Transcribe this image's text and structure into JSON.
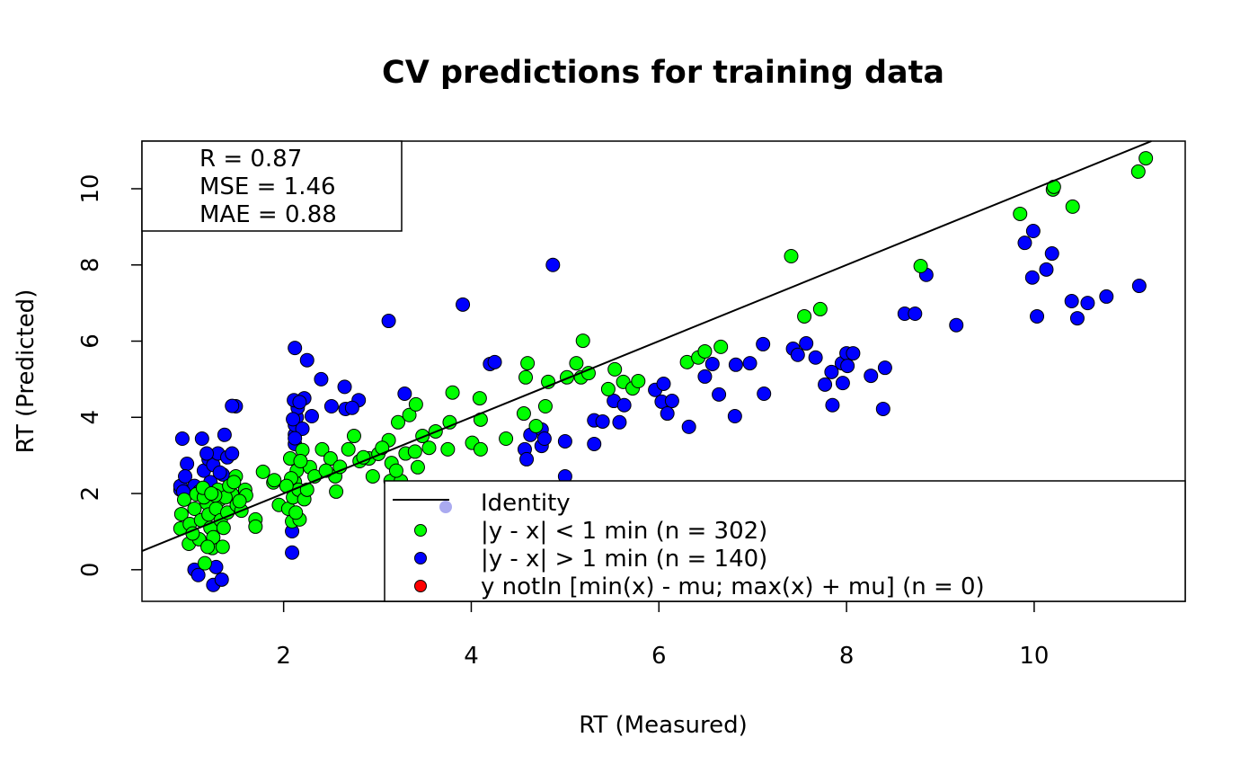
{
  "chart_data": {
    "type": "scatter",
    "title": "CV predictions for training data",
    "xlabel": "RT (Measured)",
    "ylabel": "RT (Predicted)",
    "xlim": [
      0.49,
      11.61
    ],
    "ylim": [
      -0.83,
      11.25
    ],
    "xticks": [
      2,
      4,
      6,
      8,
      10
    ],
    "yticks": [
      0,
      2,
      4,
      6,
      8,
      10
    ],
    "grid": false,
    "stats": [
      "R = 0.87",
      "MSE = 1.46",
      "MAE = 0.88"
    ],
    "identity_line": {
      "slope": 1,
      "intercept": 0,
      "color": "#000000"
    },
    "legend": {
      "placement": "bottom-right",
      "entries": [
        {
          "label": "Identity",
          "marker": "line",
          "color": "#000000"
        },
        {
          "label": "|y - x| < 1 min (n = 302)",
          "marker": "point",
          "color": "#00ff00"
        },
        {
          "label": "|y - x| > 1 min (n = 140)",
          "marker": "point",
          "color": "#0000ff"
        },
        {
          "label": "y notIn [min(x) - mu; max(x) + mu] (n = 0)",
          "marker": "point",
          "color": "#ff0000"
        }
      ],
      "extra_marker_color": "#aaaaf0"
    },
    "series": [
      {
        "color": "#0000ff",
        "points": [
          [
            0.92,
            3.44
          ],
          [
            1.13,
            3.44
          ],
          [
            0.97,
            2.78
          ],
          [
            1.37,
            3.54
          ],
          [
            1.49,
            4.29
          ],
          [
            1.45,
            4.3
          ],
          [
            1.05,
            0.0
          ],
          [
            1.09,
            -0.14
          ],
          [
            1.25,
            -0.4
          ],
          [
            1.34,
            -0.26
          ],
          [
            1.28,
            0.07
          ],
          [
            0.9,
            2.1
          ],
          [
            0.9,
            2.2
          ],
          [
            0.95,
            2.45
          ],
          [
            1.15,
            2.6
          ],
          [
            1.2,
            2.9
          ],
          [
            1.25,
            2.75
          ],
          [
            1.3,
            3.05
          ],
          [
            1.35,
            2.5
          ],
          [
            1.4,
            2.95
          ],
          [
            1.22,
            2.3
          ],
          [
            1.32,
            2.55
          ],
          [
            1.45,
            3.05
          ],
          [
            1.18,
            3.05
          ],
          [
            1.05,
            2.2
          ],
          [
            1.1,
            2.05
          ],
          [
            0.93,
            2.05
          ],
          [
            2.09,
            1.01
          ],
          [
            2.09,
            0.45
          ],
          [
            2.12,
            3.3
          ],
          [
            2.12,
            3.55
          ],
          [
            2.12,
            3.8
          ],
          [
            2.14,
            4.0
          ],
          [
            2.15,
            4.25
          ],
          [
            2.11,
            4.45
          ],
          [
            2.2,
            3.7
          ],
          [
            2.22,
            4.5
          ],
          [
            2.17,
            4.4
          ],
          [
            2.12,
            5.82
          ],
          [
            2.12,
            3.45
          ],
          [
            2.1,
            3.95
          ],
          [
            2.25,
            5.5
          ],
          [
            2.4,
            5.0
          ],
          [
            2.65,
            4.8
          ],
          [
            2.8,
            4.45
          ],
          [
            2.51,
            4.29
          ],
          [
            2.66,
            4.22
          ],
          [
            2.73,
            4.25
          ],
          [
            2.3,
            4.03
          ],
          [
            3.12,
            6.53
          ],
          [
            3.91,
            6.96
          ],
          [
            4.2,
            5.4
          ],
          [
            4.25,
            5.45
          ],
          [
            4.87,
            8.0
          ],
          [
            3.29,
            4.62
          ],
          [
            4.57,
            3.16
          ],
          [
            4.59,
            2.9
          ],
          [
            4.63,
            3.54
          ],
          [
            4.75,
            3.68
          ],
          [
            4.75,
            3.25
          ],
          [
            4.78,
            3.44
          ],
          [
            5.0,
            3.37
          ],
          [
            5.0,
            2.45
          ],
          [
            5.31,
            3.92
          ],
          [
            5.4,
            3.89
          ],
          [
            5.31,
            3.3
          ],
          [
            5.52,
            4.43
          ],
          [
            5.58,
            3.87
          ],
          [
            5.63,
            4.32
          ],
          [
            5.96,
            4.72
          ],
          [
            6.05,
            4.88
          ],
          [
            6.03,
            4.41
          ],
          [
            6.14,
            4.43
          ],
          [
            6.09,
            4.1
          ],
          [
            6.32,
            3.75
          ],
          [
            6.49,
            5.07
          ],
          [
            6.57,
            5.4
          ],
          [
            6.64,
            4.6
          ],
          [
            6.81,
            4.03
          ],
          [
            6.82,
            5.38
          ],
          [
            6.97,
            5.42
          ],
          [
            7.11,
            5.92
          ],
          [
            7.12,
            4.62
          ],
          [
            7.43,
            5.8
          ],
          [
            7.48,
            5.64
          ],
          [
            7.57,
            5.94
          ],
          [
            7.67,
            5.57
          ],
          [
            7.77,
            4.86
          ],
          [
            7.84,
            5.19
          ],
          [
            7.85,
            4.32
          ],
          [
            7.95,
            5.42
          ],
          [
            7.96,
            4.9
          ],
          [
            8.0,
            5.68
          ],
          [
            8.01,
            5.35
          ],
          [
            8.07,
            5.68
          ],
          [
            8.26,
            5.09
          ],
          [
            8.41,
            5.3
          ],
          [
            8.39,
            4.22
          ],
          [
            8.62,
            6.72
          ],
          [
            8.73,
            6.72
          ],
          [
            8.85,
            7.74
          ],
          [
            9.17,
            6.42
          ],
          [
            9.9,
            8.58
          ],
          [
            9.99,
            8.89
          ],
          [
            9.98,
            7.67
          ],
          [
            10.03,
            6.65
          ],
          [
            10.13,
            7.88
          ],
          [
            10.19,
            8.3
          ],
          [
            10.4,
            7.05
          ],
          [
            10.46,
            6.6
          ],
          [
            10.57,
            7.0
          ],
          [
            10.77,
            7.17
          ],
          [
            11.12,
            7.45
          ]
        ]
      },
      {
        "color": "#00ff00",
        "points": [
          [
            0.91,
            1.46
          ],
          [
            0.9,
            1.08
          ],
          [
            0.99,
            0.68
          ],
          [
            1.16,
            0.17
          ],
          [
            1.24,
            0.57
          ],
          [
            0.94,
            1.84
          ],
          [
            1.07,
            1.98
          ],
          [
            1.18,
            1.75
          ],
          [
            1.32,
            1.84
          ],
          [
            1.45,
            1.98
          ],
          [
            1.49,
            2.45
          ],
          [
            1.59,
            2.1
          ],
          [
            1.7,
            1.32
          ],
          [
            1.7,
            1.13
          ],
          [
            1.0,
            1.2
          ],
          [
            1.05,
            1.6
          ],
          [
            1.1,
            0.8
          ],
          [
            1.12,
            1.3
          ],
          [
            1.15,
            1.9
          ],
          [
            1.2,
            1.45
          ],
          [
            1.22,
            1.1
          ],
          [
            1.25,
            0.85
          ],
          [
            1.28,
            1.6
          ],
          [
            1.3,
            2.1
          ],
          [
            1.33,
            1.3
          ],
          [
            1.35,
            0.6
          ],
          [
            1.38,
            1.9
          ],
          [
            1.4,
            1.5
          ],
          [
            1.42,
            2.2
          ],
          [
            1.5,
            1.7
          ],
          [
            1.55,
            1.55
          ],
          [
            1.6,
            1.95
          ],
          [
            1.03,
            0.95
          ],
          [
            1.14,
            2.15
          ],
          [
            1.19,
            0.6
          ],
          [
            1.27,
            1.95
          ],
          [
            1.36,
            1.1
          ],
          [
            1.47,
            2.3
          ],
          [
            1.53,
            1.8
          ],
          [
            1.23,
            2.0
          ],
          [
            1.78,
            2.57
          ],
          [
            1.89,
            2.29
          ],
          [
            1.95,
            1.7
          ],
          [
            2.09,
            1.27
          ],
          [
            2.17,
            1.32
          ],
          [
            2.07,
            2.92
          ],
          [
            2.2,
            3.14
          ],
          [
            2.28,
            2.69
          ],
          [
            2.33,
            2.45
          ],
          [
            2.05,
            1.6
          ],
          [
            2.1,
            1.9
          ],
          [
            2.12,
            2.3
          ],
          [
            2.14,
            2.6
          ],
          [
            2.16,
            2.1
          ],
          [
            2.08,
            2.4
          ],
          [
            2.13,
            1.5
          ],
          [
            2.18,
            2.85
          ],
          [
            2.22,
            1.85
          ],
          [
            2.03,
            2.2
          ],
          [
            1.9,
            2.35
          ],
          [
            2.25,
            2.1
          ],
          [
            2.41,
            3.16
          ],
          [
            2.5,
            2.92
          ],
          [
            2.55,
            2.45
          ],
          [
            2.56,
            2.05
          ],
          [
            2.69,
            3.16
          ],
          [
            2.75,
            3.51
          ],
          [
            2.81,
            2.85
          ],
          [
            2.91,
            2.92
          ],
          [
            3.01,
            3.04
          ],
          [
            3.12,
            3.4
          ],
          [
            3.14,
            2.33
          ],
          [
            3.22,
            3.87
          ],
          [
            3.25,
            2.33
          ],
          [
            3.34,
            4.06
          ],
          [
            3.41,
            4.34
          ],
          [
            3.43,
            2.69
          ],
          [
            3.48,
            3.51
          ],
          [
            3.62,
            3.63
          ],
          [
            2.6,
            2.7
          ],
          [
            2.45,
            2.6
          ],
          [
            2.95,
            2.45
          ],
          [
            3.05,
            3.2
          ],
          [
            3.15,
            2.8
          ],
          [
            3.3,
            3.05
          ],
          [
            3.55,
            3.2
          ],
          [
            3.2,
            2.6
          ],
          [
            2.85,
            2.95
          ],
          [
            3.4,
            3.1
          ],
          [
            3.75,
            3.16
          ],
          [
            3.77,
            3.87
          ],
          [
            3.8,
            4.65
          ],
          [
            4.01,
            3.33
          ],
          [
            4.1,
            3.16
          ],
          [
            4.1,
            3.94
          ],
          [
            4.09,
            4.5
          ],
          [
            4.37,
            3.44
          ],
          [
            4.56,
            4.1
          ],
          [
            4.58,
            5.05
          ],
          [
            4.6,
            5.42
          ],
          [
            4.69,
            3.77
          ],
          [
            4.79,
            4.29
          ],
          [
            4.82,
            4.93
          ],
          [
            5.02,
            5.05
          ],
          [
            5.12,
            5.42
          ],
          [
            5.17,
            5.05
          ],
          [
            5.19,
            6.01
          ],
          [
            5.25,
            5.16
          ],
          [
            5.46,
            4.74
          ],
          [
            5.53,
            5.26
          ],
          [
            5.62,
            4.93
          ],
          [
            5.72,
            4.76
          ],
          [
            5.78,
            4.95
          ],
          [
            6.3,
            5.45
          ],
          [
            6.42,
            5.57
          ],
          [
            6.49,
            5.73
          ],
          [
            6.66,
            5.85
          ],
          [
            7.41,
            8.23
          ],
          [
            7.55,
            6.65
          ],
          [
            7.72,
            6.84
          ],
          [
            8.79,
            7.97
          ],
          [
            9.85,
            9.34
          ],
          [
            10.2,
            9.98
          ],
          [
            10.21,
            10.05
          ],
          [
            10.41,
            9.53
          ],
          [
            11.11,
            10.45
          ],
          [
            11.19,
            10.8
          ]
        ]
      }
    ]
  }
}
